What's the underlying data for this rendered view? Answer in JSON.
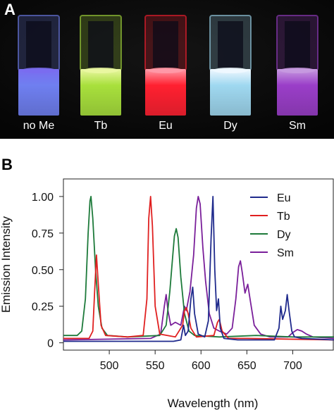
{
  "panel_a": {
    "letter": "A",
    "vials": [
      {
        "label": "no Me",
        "glow": "#7a6cf0",
        "liquid": "#6f7ff0"
      },
      {
        "label": "Tb",
        "glow": "#eaf7a2",
        "liquid": "#a8e03c"
      },
      {
        "label": "Eu",
        "glow": "#ff9aa8",
        "liquid": "#ff2030"
      },
      {
        "label": "Dy",
        "glow": "#f0f8ff",
        "liquid": "#9fd8f0"
      },
      {
        "label": "Sm",
        "glow": "#c69ae0",
        "liquid": "#9a3ec8"
      }
    ]
  },
  "panel_b": {
    "letter": "B"
  },
  "chart_data": {
    "type": "line",
    "title": "",
    "xlabel": "Wavelength (nm)",
    "ylabel": "Emission Intensity",
    "xlim": [
      450,
      745
    ],
    "ylim": [
      -0.05,
      1.12
    ],
    "xticks": [
      500,
      550,
      600,
      650,
      700
    ],
    "yticks": [
      0,
      0.25,
      0.5,
      0.75,
      1.0
    ],
    "ytick_labels": [
      "0",
      "0.25",
      "0.50",
      "0.75",
      "1.00"
    ],
    "legend_position": "top-right",
    "series": [
      {
        "name": "Eu",
        "color": "#1f2a8c",
        "points": [
          [
            450,
            0.01
          ],
          [
            570,
            0.01
          ],
          [
            578,
            0.02
          ],
          [
            581,
            0.12
          ],
          [
            583,
            0.05
          ],
          [
            586,
            0.08
          ],
          [
            589,
            0.3
          ],
          [
            591,
            0.38
          ],
          [
            593,
            0.2
          ],
          [
            597,
            0.06
          ],
          [
            604,
            0.04
          ],
          [
            608,
            0.15
          ],
          [
            611,
            0.72
          ],
          [
            613,
            1.0
          ],
          [
            615,
            0.5
          ],
          [
            617,
            0.22
          ],
          [
            619,
            0.3
          ],
          [
            621,
            0.1
          ],
          [
            625,
            0.03
          ],
          [
            640,
            0.02
          ],
          [
            680,
            0.02
          ],
          [
            685,
            0.1
          ],
          [
            687,
            0.25
          ],
          [
            689,
            0.16
          ],
          [
            692,
            0.22
          ],
          [
            694,
            0.33
          ],
          [
            696,
            0.22
          ],
          [
            699,
            0.08
          ],
          [
            702,
            0.04
          ],
          [
            710,
            0.03
          ],
          [
            745,
            0.02
          ]
        ]
      },
      {
        "name": "Tb",
        "color": "#e02020",
        "points": [
          [
            450,
            0.03
          ],
          [
            478,
            0.03
          ],
          [
            482,
            0.08
          ],
          [
            484,
            0.35
          ],
          [
            486,
            0.6
          ],
          [
            488,
            0.4
          ],
          [
            491,
            0.12
          ],
          [
            496,
            0.05
          ],
          [
            520,
            0.04
          ],
          [
            537,
            0.05
          ],
          [
            541,
            0.3
          ],
          [
            543,
            0.85
          ],
          [
            545,
            1.0
          ],
          [
            547,
            0.8
          ],
          [
            550,
            0.25
          ],
          [
            555,
            0.06
          ],
          [
            572,
            0.04
          ],
          [
            580,
            0.12
          ],
          [
            582,
            0.22
          ],
          [
            584,
            0.24
          ],
          [
            586,
            0.2
          ],
          [
            589,
            0.1
          ],
          [
            595,
            0.04
          ],
          [
            614,
            0.05
          ],
          [
            618,
            0.14
          ],
          [
            620,
            0.16
          ],
          [
            623,
            0.08
          ],
          [
            630,
            0.03
          ],
          [
            650,
            0.03
          ],
          [
            745,
            0.02
          ]
        ]
      },
      {
        "name": "Dy",
        "color": "#1d7a3a",
        "points": [
          [
            450,
            0.05
          ],
          [
            465,
            0.05
          ],
          [
            470,
            0.08
          ],
          [
            474,
            0.3
          ],
          [
            477,
            0.75
          ],
          [
            479,
            0.97
          ],
          [
            480,
            1.0
          ],
          [
            482,
            0.85
          ],
          [
            485,
            0.5
          ],
          [
            488,
            0.25
          ],
          [
            492,
            0.1
          ],
          [
            498,
            0.05
          ],
          [
            520,
            0.04
          ],
          [
            555,
            0.05
          ],
          [
            562,
            0.12
          ],
          [
            566,
            0.35
          ],
          [
            569,
            0.58
          ],
          [
            571,
            0.73
          ],
          [
            573,
            0.78
          ],
          [
            575,
            0.72
          ],
          [
            578,
            0.45
          ],
          [
            582,
            0.2
          ],
          [
            587,
            0.08
          ],
          [
            593,
            0.05
          ],
          [
            620,
            0.04
          ],
          [
            660,
            0.05
          ],
          [
            700,
            0.04
          ],
          [
            745,
            0.04
          ]
        ]
      },
      {
        "name": "Sm",
        "color": "#7a1f9a",
        "points": [
          [
            450,
            0.02
          ],
          [
            545,
            0.03
          ],
          [
            556,
            0.06
          ],
          [
            560,
            0.25
          ],
          [
            562,
            0.33
          ],
          [
            564,
            0.22
          ],
          [
            567,
            0.12
          ],
          [
            572,
            0.14
          ],
          [
            578,
            0.12
          ],
          [
            582,
            0.25
          ],
          [
            584,
            0.22
          ],
          [
            588,
            0.35
          ],
          [
            592,
            0.6
          ],
          [
            595,
            0.92
          ],
          [
            597,
            1.0
          ],
          [
            599,
            0.95
          ],
          [
            602,
            0.65
          ],
          [
            605,
            0.42
          ],
          [
            609,
            0.2
          ],
          [
            614,
            0.1
          ],
          [
            620,
            0.08
          ],
          [
            628,
            0.06
          ],
          [
            634,
            0.1
          ],
          [
            638,
            0.3
          ],
          [
            641,
            0.52
          ],
          [
            643,
            0.56
          ],
          [
            645,
            0.48
          ],
          [
            648,
            0.34
          ],
          [
            651,
            0.4
          ],
          [
            654,
            0.28
          ],
          [
            658,
            0.12
          ],
          [
            665,
            0.06
          ],
          [
            675,
            0.04
          ],
          [
            695,
            0.04
          ],
          [
            700,
            0.07
          ],
          [
            705,
            0.09
          ],
          [
            710,
            0.08
          ],
          [
            715,
            0.06
          ],
          [
            722,
            0.04
          ],
          [
            745,
            0.03
          ]
        ]
      }
    ]
  }
}
